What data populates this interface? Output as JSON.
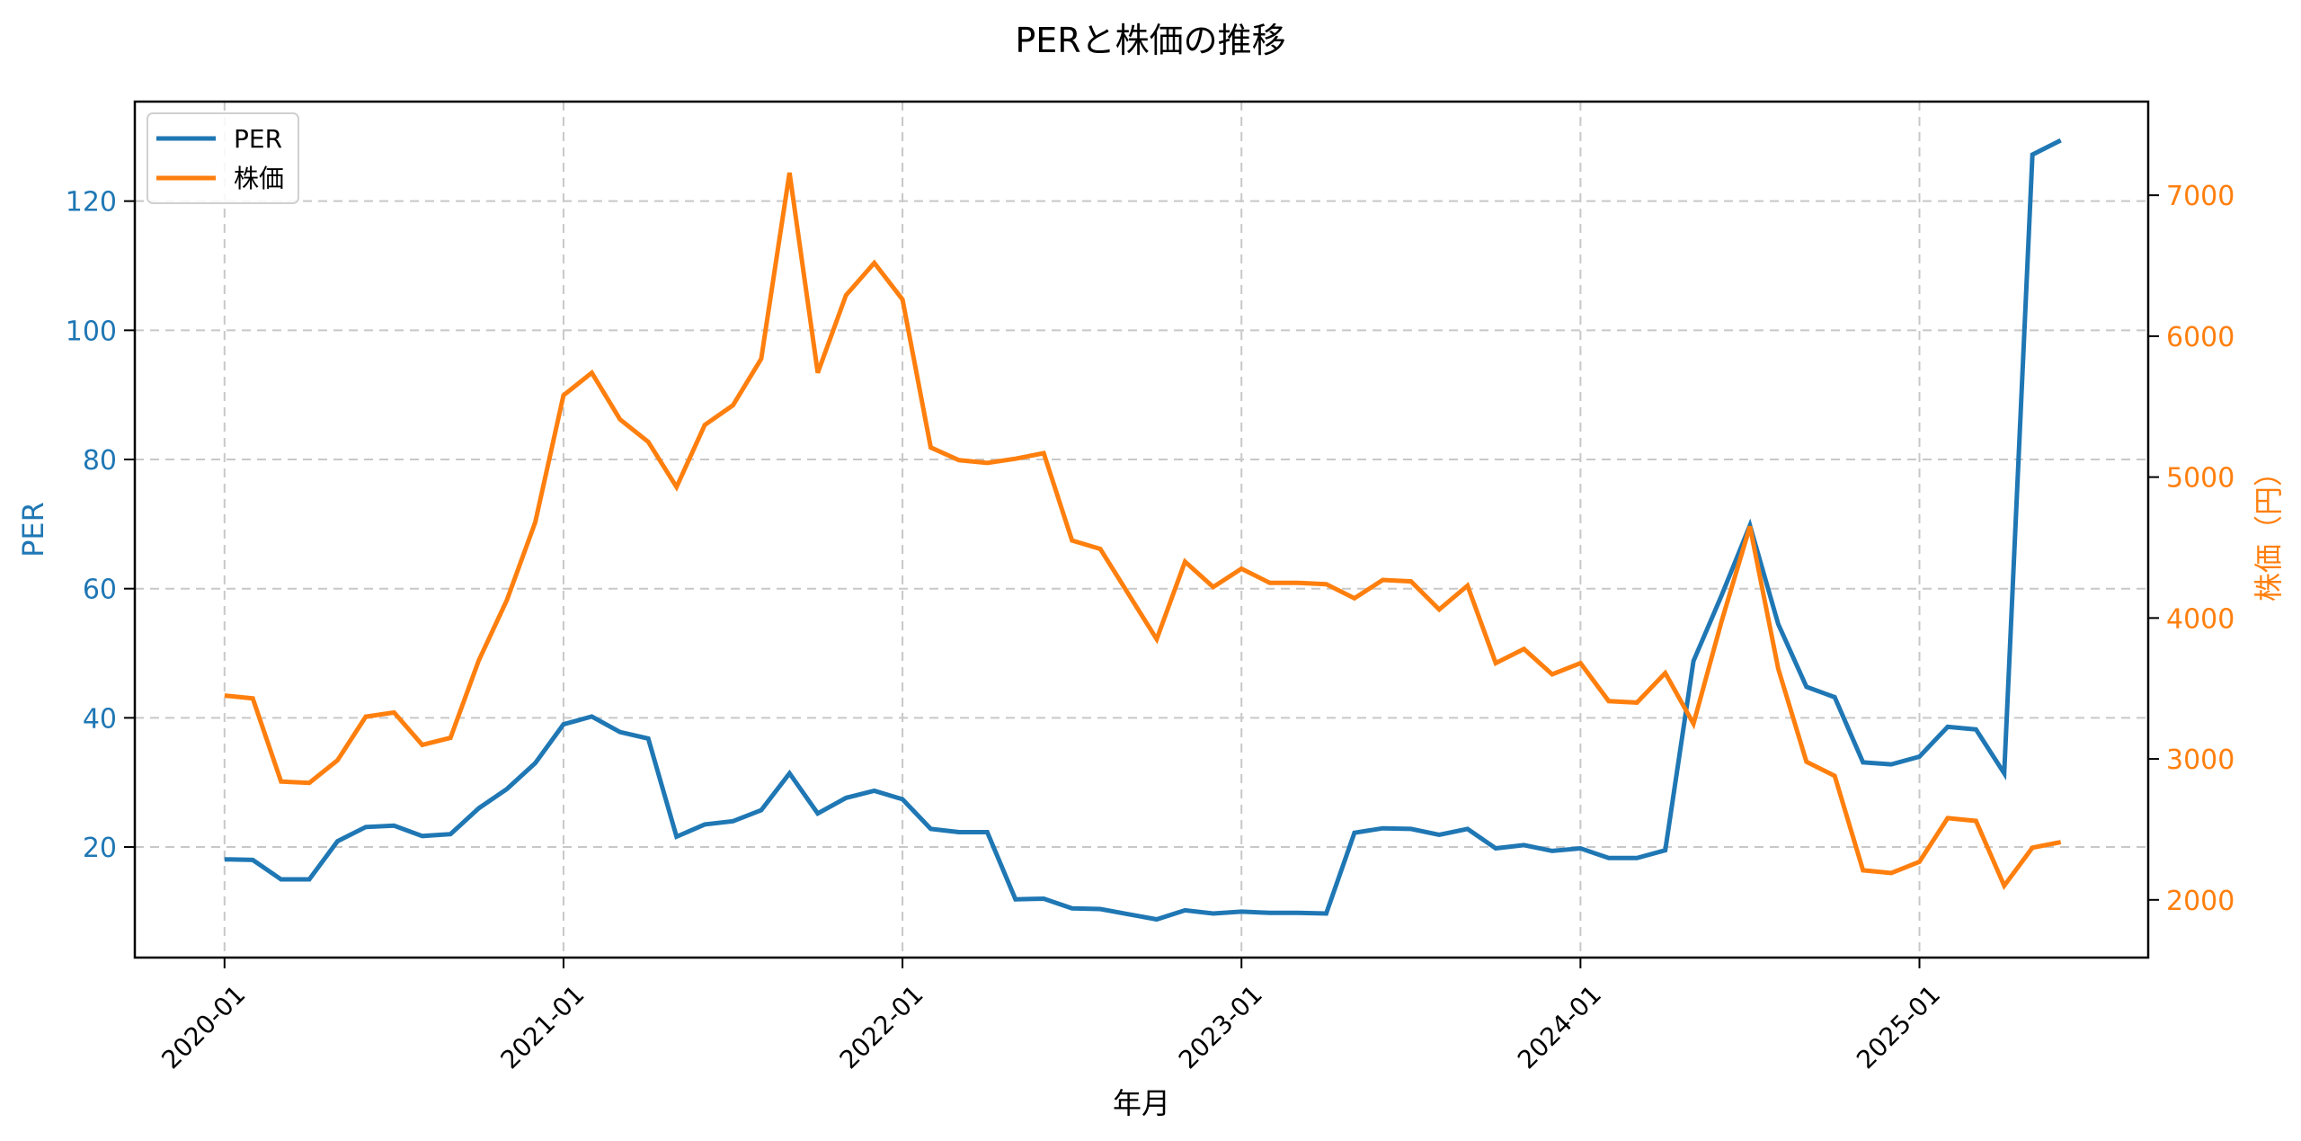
{
  "chart_data": {
    "type": "line",
    "title": "PERと株価の推移",
    "xlabel": "年月",
    "ylabel_left": "PER",
    "ylabel_right": "株価（円）",
    "x_ticks": [
      "2020-01",
      "2021-01",
      "2022-01",
      "2023-01",
      "2024-01",
      "2025-01"
    ],
    "y_left_ticks": [
      20,
      40,
      60,
      80,
      100,
      120
    ],
    "y_right_ticks": [
      2000,
      3000,
      4000,
      5000,
      6000,
      7000
    ],
    "y_left_range": [
      3.5,
      136.5
    ],
    "y_right_range": [
      1590,
      7670
    ],
    "grid": true,
    "legend_position": "upper left",
    "x": [
      "2020-01",
      "2020-02",
      "2020-03",
      "2020-04",
      "2020-05",
      "2020-06",
      "2020-07",
      "2020-08",
      "2020-09",
      "2020-10",
      "2020-11",
      "2020-12",
      "2021-01",
      "2021-02",
      "2021-03",
      "2021-04",
      "2021-05",
      "2021-06",
      "2021-07",
      "2021-08",
      "2021-09",
      "2021-10",
      "2021-11",
      "2021-12",
      "2022-01",
      "2022-02",
      "2022-03",
      "2022-04",
      "2022-05",
      "2022-06",
      "2022-07",
      "2022-08",
      "2022-09",
      "2022-10",
      "2022-11",
      "2022-12",
      "2023-01",
      "2023-02",
      "2023-03",
      "2023-04",
      "2023-05",
      "2023-06",
      "2023-07",
      "2023-08",
      "2023-09",
      "2023-10",
      "2023-11",
      "2023-12",
      "2024-01",
      "2024-02",
      "2024-03",
      "2024-04",
      "2024-05",
      "2024-06",
      "2024-07",
      "2024-08",
      "2024-09",
      "2024-10",
      "2024-11",
      "2024-12",
      "2025-01",
      "2025-02",
      "2025-03",
      "2025-04",
      "2025-05",
      "2025-06"
    ],
    "series": [
      {
        "name": "PER",
        "color": "#1f77b4",
        "axis": "left",
        "values": [
          18.1,
          18.0,
          15.0,
          15.0,
          20.9,
          23.1,
          23.3,
          21.7,
          22.0,
          26.0,
          29.0,
          33.0,
          39.0,
          40.2,
          37.8,
          36.8,
          21.6,
          23.5,
          24.0,
          25.7,
          31.4,
          25.2,
          27.6,
          28.7,
          27.4,
          22.8,
          22.3,
          22.3,
          11.9,
          12.0,
          10.5,
          10.4,
          9.6,
          8.8,
          10.2,
          9.7,
          10.0,
          9.8,
          9.8,
          9.7,
          22.2,
          22.9,
          22.8,
          21.9,
          22.8,
          19.8,
          20.3,
          19.4,
          19.8,
          18.3,
          18.3,
          19.5,
          48.8,
          59.0,
          69.8,
          54.5,
          44.8,
          43.2,
          33.1,
          32.8,
          34.0,
          38.6,
          38.2,
          31.4,
          127.2,
          129.4
        ]
      },
      {
        "name": "株価",
        "color": "#ff7f0e",
        "axis": "right",
        "values": [
          3450,
          3430,
          2840,
          2830,
          2990,
          3300,
          3330,
          3100,
          3150,
          3700,
          4130,
          4680,
          5580,
          5740,
          5410,
          5250,
          4930,
          5370,
          5510,
          5840,
          7160,
          5740,
          6290,
          6520,
          6260,
          5210,
          5120,
          5100,
          5130,
          5170,
          4550,
          4490,
          4170,
          3850,
          4400,
          4220,
          4350,
          4250,
          4250,
          4240,
          4140,
          4270,
          4260,
          4060,
          4230,
          3680,
          3780,
          3600,
          3680,
          3410,
          3400,
          3610,
          3250,
          3980,
          4650,
          3640,
          2980,
          2880,
          2210,
          2190,
          2270,
          2580,
          2560,
          2100,
          2370,
          2410
        ]
      }
    ]
  }
}
